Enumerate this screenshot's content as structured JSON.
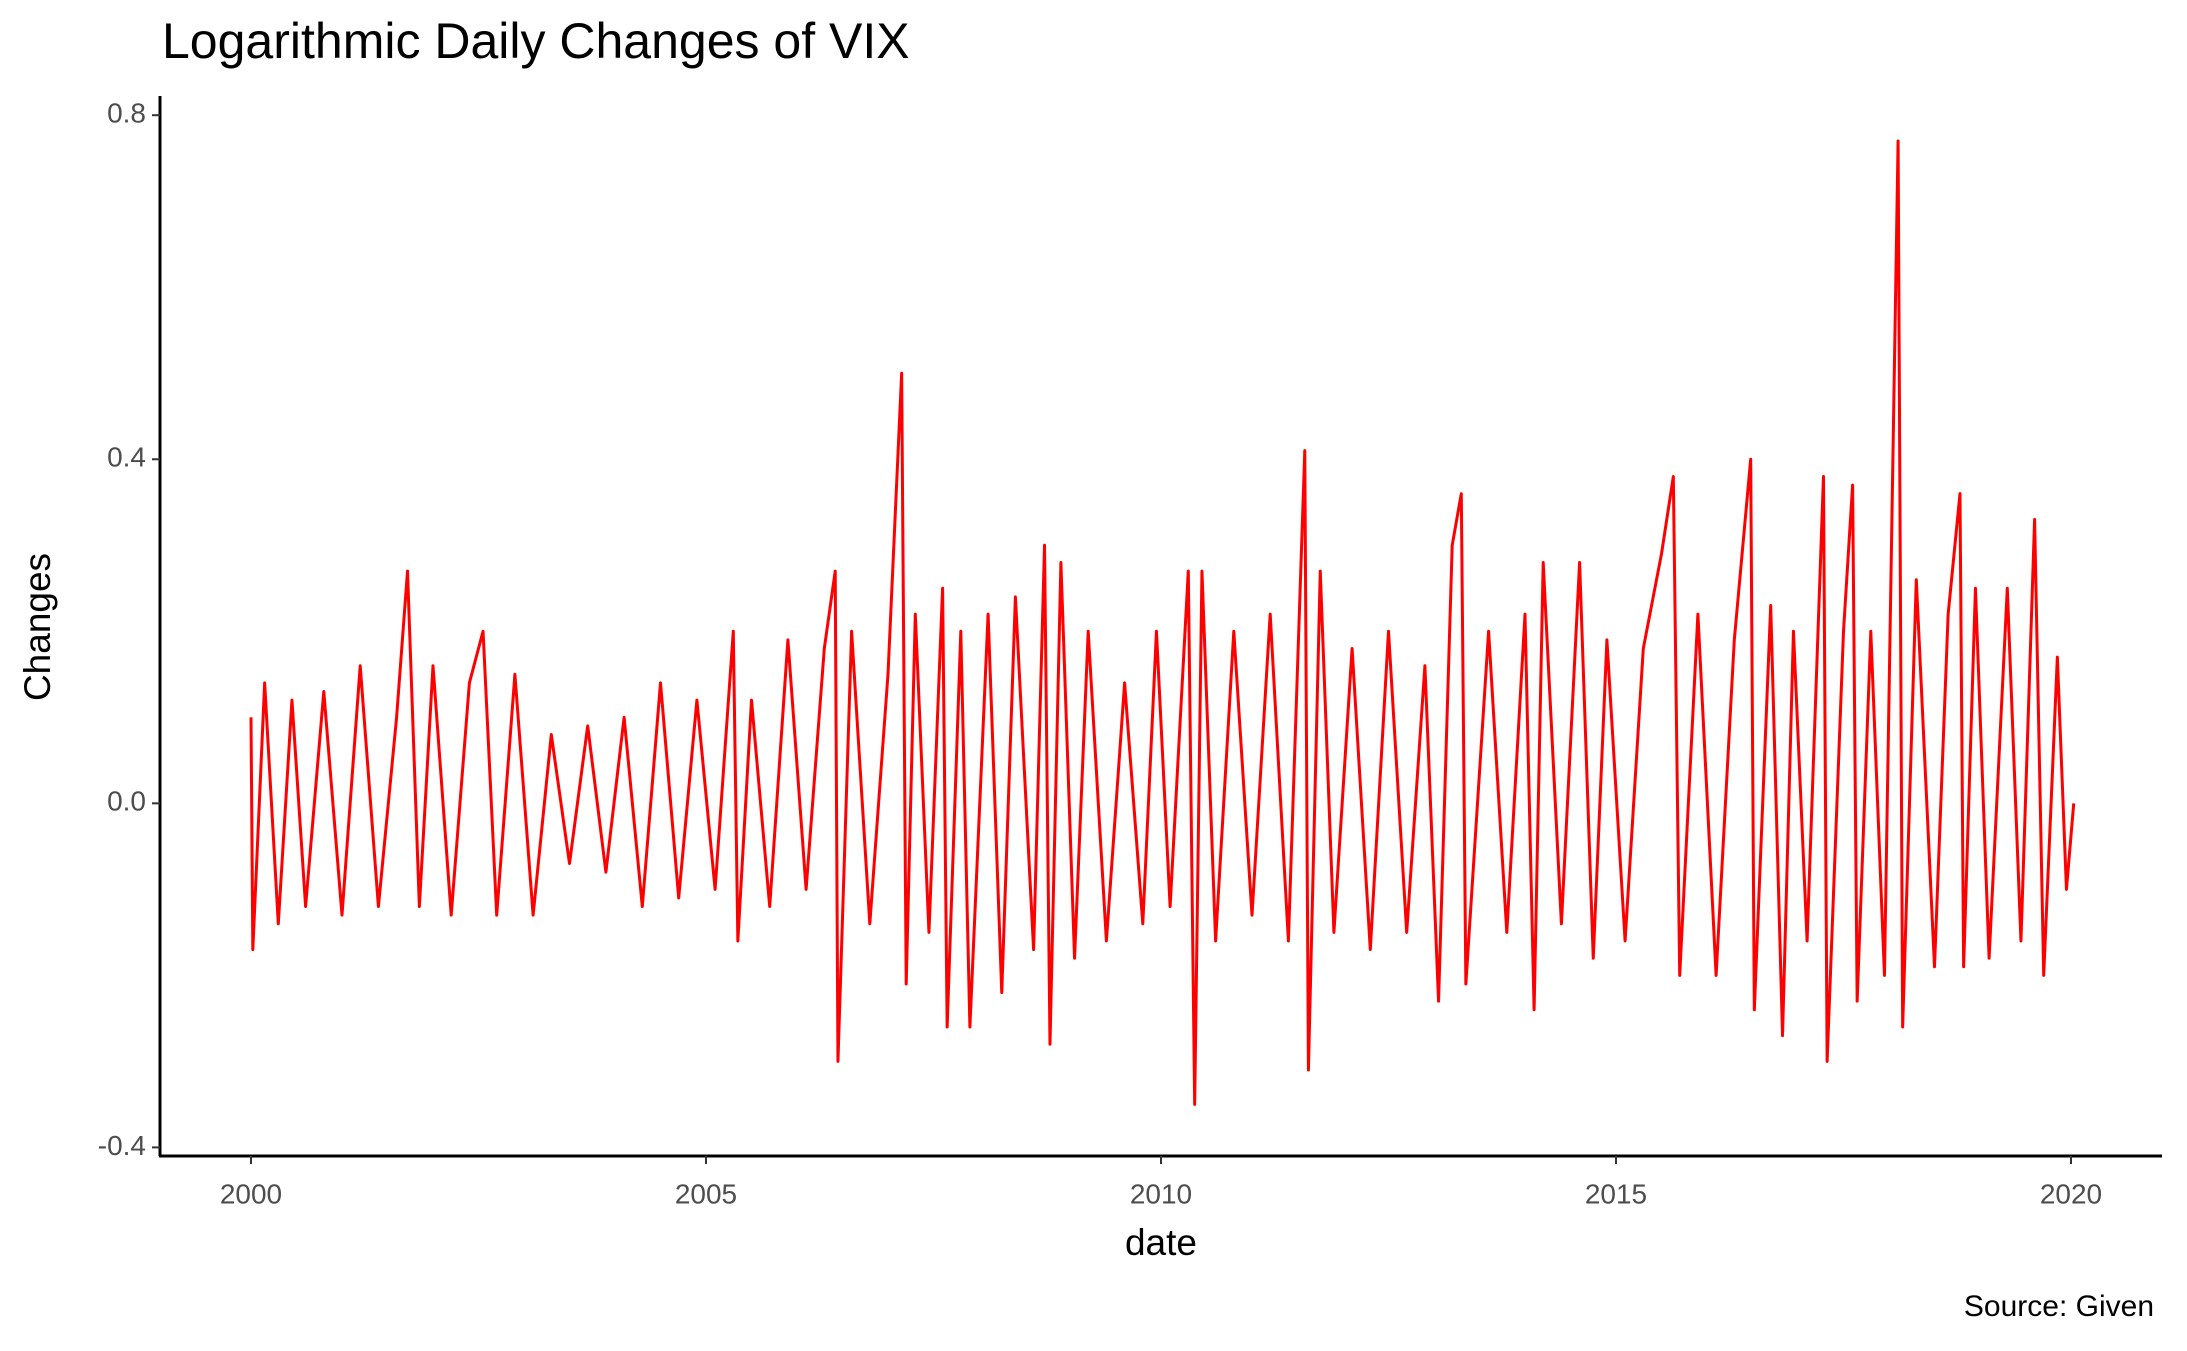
{
  "chart_data": {
    "type": "line",
    "title": "Logarithmic Daily Changes of VIX",
    "x_label": "date",
    "y_label": "Changes",
    "caption": "Source: Given",
    "color": "#ff0000",
    "x": [
      2000.0,
      2000.02,
      2000.15,
      2000.3,
      2000.45,
      2000.6,
      2000.8,
      2001.0,
      2001.2,
      2001.4,
      2001.6,
      2001.72,
      2001.85,
      2002.0,
      2002.2,
      2002.4,
      2002.55,
      2002.7,
      2002.9,
      2003.1,
      2003.3,
      2003.5,
      2003.7,
      2003.9,
      2004.1,
      2004.3,
      2004.5,
      2004.7,
      2004.9,
      2005.1,
      2005.3,
      2005.35,
      2005.5,
      2005.7,
      2005.9,
      2006.1,
      2006.3,
      2006.42,
      2006.45,
      2006.6,
      2006.8,
      2007.0,
      2007.15,
      2007.2,
      2007.3,
      2007.45,
      2007.6,
      2007.65,
      2007.8,
      2007.9,
      2008.1,
      2008.25,
      2008.4,
      2008.6,
      2008.72,
      2008.78,
      2008.9,
      2009.05,
      2009.2,
      2009.4,
      2009.6,
      2009.8,
      2009.95,
      2010.1,
      2010.3,
      2010.37,
      2010.45,
      2010.6,
      2010.8,
      2011.0,
      2011.2,
      2011.4,
      2011.58,
      2011.62,
      2011.75,
      2011.9,
      2012.1,
      2012.3,
      2012.5,
      2012.7,
      2012.9,
      2013.05,
      2013.2,
      2013.3,
      2013.35,
      2013.6,
      2013.8,
      2014.0,
      2014.1,
      2014.2,
      2014.4,
      2014.6,
      2014.75,
      2014.9,
      2015.1,
      2015.3,
      2015.5,
      2015.63,
      2015.7,
      2015.9,
      2016.1,
      2016.3,
      2016.48,
      2016.52,
      2016.7,
      2016.83,
      2016.95,
      2017.1,
      2017.28,
      2017.32,
      2017.5,
      2017.6,
      2017.65,
      2017.8,
      2017.95,
      2018.1,
      2018.15,
      2018.3,
      2018.5,
      2018.65,
      2018.78,
      2018.82,
      2018.95,
      2019.1,
      2019.3,
      2019.45,
      2019.6,
      2019.7,
      2019.85,
      2019.95,
      2020.03
    ],
    "values": [
      0.1,
      -0.17,
      0.14,
      -0.14,
      0.12,
      -0.12,
      0.13,
      -0.13,
      0.16,
      -0.12,
      0.1,
      0.27,
      -0.12,
      0.16,
      -0.13,
      0.14,
      0.2,
      -0.13,
      0.15,
      -0.13,
      0.08,
      -0.07,
      0.09,
      -0.08,
      0.1,
      -0.12,
      0.14,
      -0.11,
      0.12,
      -0.1,
      0.2,
      -0.16,
      0.12,
      -0.12,
      0.19,
      -0.1,
      0.18,
      0.27,
      -0.3,
      0.2,
      -0.14,
      0.15,
      0.5,
      -0.21,
      0.22,
      -0.15,
      0.25,
      -0.26,
      0.2,
      -0.26,
      0.22,
      -0.22,
      0.24,
      -0.17,
      0.3,
      -0.28,
      0.28,
      -0.18,
      0.2,
      -0.16,
      0.14,
      -0.14,
      0.2,
      -0.12,
      0.27,
      -0.35,
      0.27,
      -0.16,
      0.2,
      -0.13,
      0.22,
      -0.16,
      0.41,
      -0.31,
      0.27,
      -0.15,
      0.18,
      -0.17,
      0.2,
      -0.15,
      0.16,
      -0.23,
      0.3,
      0.36,
      -0.21,
      0.2,
      -0.15,
      0.22,
      -0.24,
      0.28,
      -0.14,
      0.28,
      -0.18,
      0.19,
      -0.16,
      0.18,
      0.29,
      0.38,
      -0.2,
      0.22,
      -0.2,
      0.19,
      0.4,
      -0.24,
      0.23,
      -0.27,
      0.2,
      -0.16,
      0.38,
      -0.3,
      0.2,
      0.37,
      -0.23,
      0.2,
      -0.2,
      0.77,
      -0.26,
      0.26,
      -0.19,
      0.22,
      0.36,
      -0.19,
      0.25,
      -0.18,
      0.25,
      -0.16,
      0.33,
      -0.2,
      0.17,
      -0.1,
      0.0
    ],
    "xlim": [
      1999.0,
      2021.0
    ],
    "xticks": [
      2000,
      2005,
      2010,
      2015,
      2020
    ],
    "ylim": [
      -0.41,
      0.82
    ],
    "yticks": [
      -0.4,
      {
        "value": 0,
        "label": "0.0"
      },
      0.4,
      0.8
    ],
    "grid": false
  }
}
